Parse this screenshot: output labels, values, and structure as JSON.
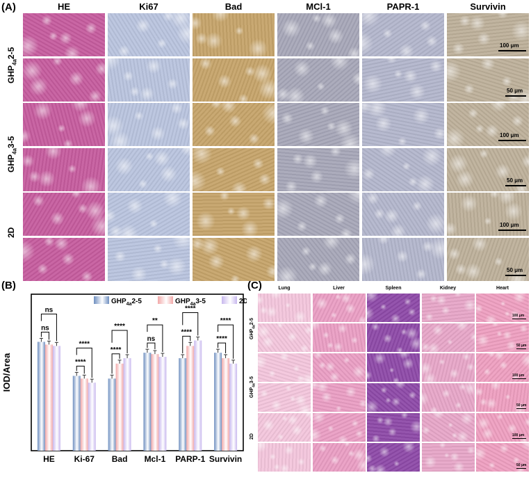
{
  "panel_a": {
    "label": "(A)",
    "columns": [
      "HE",
      "Ki67",
      "Bad",
      "MCl-1",
      "PAPR-1",
      "Survivin"
    ],
    "rows": [
      {
        "label_main": "GHP",
        "label_sub": "4a",
        "label_tail": "2-5"
      },
      {
        "label_main": "GHP",
        "label_sub": "4a",
        "label_tail": "3-5"
      },
      {
        "label_main": "2D",
        "label_sub": "",
        "label_tail": ""
      }
    ],
    "scale_labels": [
      "100 μm",
      "50 μm",
      "100 μm",
      "50 μm",
      "100 μm",
      "50 μm"
    ],
    "stain_colors": {
      "HE": "#c65c9e",
      "Ki67": "#b9c4de",
      "Bad": "#c6a46a",
      "MCl-1": "#a7a7b8",
      "PAPR-1": "#b3b6cc",
      "Survivin": "#bdb09a"
    }
  },
  "panel_b": {
    "label": "(B)",
    "chart_data": {
      "type": "bar",
      "ylabel": "IOD/Area",
      "categories": [
        "HE",
        "Ki-67",
        "Bad",
        "Mcl-1",
        "PARP-1",
        "Survivin"
      ],
      "series": [
        {
          "name_main": "GHP",
          "name_sub": "4a",
          "name_tail": "2-5",
          "color": "#6f8fc0",
          "values": [
            0.8,
            0.55,
            0.53,
            0.72,
            0.68,
            0.72
          ]
        },
        {
          "name_main": "GHP",
          "name_sub": "4a",
          "name_tail": "3-5",
          "color": "#f2a8a8",
          "values": [
            0.78,
            0.53,
            0.64,
            0.71,
            0.77,
            0.68
          ]
        },
        {
          "name_main": "",
          "name_sub": "",
          "name_tail": "2D",
          "color": "#c8b8ee",
          "values": [
            0.77,
            0.5,
            0.68,
            0.69,
            0.81,
            0.64
          ]
        }
      ],
      "significance": [
        {
          "category": "HE",
          "comparisons": [
            "ns",
            "ns"
          ]
        },
        {
          "category": "Ki-67",
          "comparisons": [
            "****",
            "****"
          ]
        },
        {
          "category": "Bad",
          "comparisons": [
            "****",
            "****"
          ]
        },
        {
          "category": "Mcl-1",
          "comparisons": [
            "ns",
            "**"
          ]
        },
        {
          "category": "PARP-1",
          "comparisons": [
            "****",
            "****"
          ]
        },
        {
          "category": "Survivin",
          "comparisons": [
            "****",
            "****"
          ]
        }
      ]
    }
  },
  "panel_c": {
    "label": "(C)",
    "columns": [
      "Lung",
      "Liver",
      "Spleen",
      "Kidney",
      "Heart"
    ],
    "rows": [
      {
        "label_main": "GHP",
        "label_sub": "4a",
        "label_tail": "2-5"
      },
      {
        "label_main": "GHP",
        "label_sub": "4a",
        "label_tail": "3-5"
      },
      {
        "label_main": "2D",
        "label_sub": "",
        "label_tail": ""
      }
    ],
    "scale_labels": [
      "100 μm",
      "50 μm",
      "100 μm",
      "50 μm",
      "100 μm",
      "50 μm"
    ],
    "tissue_colors": {
      "Lung": "#f3c6dc",
      "Liver": "#ea9ec4",
      "Spleen": "#8e4aa8",
      "Kidney": "#e7a6c8",
      "Heart": "#ee9fc0"
    }
  }
}
